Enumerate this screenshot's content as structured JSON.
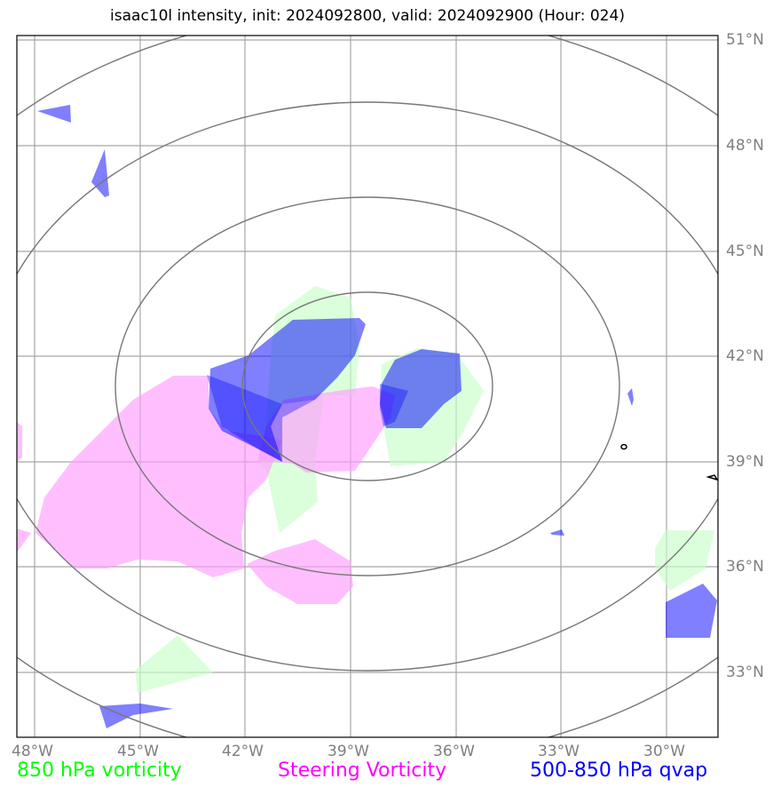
{
  "title": "isaac10l intensity, init: 2024092800, valid: 2024092900 (Hour: 024)",
  "lat_labels": [
    "51°N",
    "48°N",
    "45°N",
    "42°N",
    "39°N",
    "36°N",
    "33°N"
  ],
  "lon_labels": [
    "48°W",
    "45°W",
    "42°W",
    "39°W",
    "36°W",
    "33°W",
    "30°W"
  ],
  "legend": {
    "vorticity_850": "850 hPa vorticity",
    "steering_vorticity": "Steering Vorticity",
    "qvap": "500-850 hPa qvap"
  },
  "colors": {
    "vorticity_850": "#00ff00",
    "steering_vorticity": "#ff00ff",
    "qvap": "#0000ff",
    "grid": "#a0a0a0",
    "rings": "#707070"
  },
  "extent": {
    "lon_min": -48.5,
    "lon_max": -28.5,
    "lat_min": 31.8,
    "lat_max": 51.8
  }
}
